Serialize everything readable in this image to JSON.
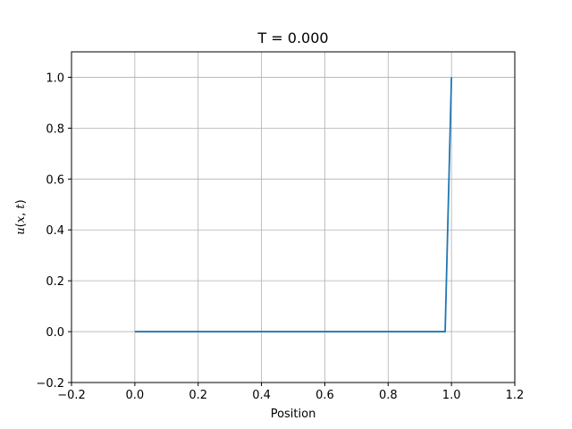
{
  "chart_data": {
    "type": "line",
    "title": "T = 0.000",
    "xlabel": "Position",
    "ylabel": "u(x, t)",
    "xlim": [
      -0.2,
      1.2
    ],
    "ylim": [
      -0.2,
      1.1
    ],
    "xticks": [
      -0.2,
      0.0,
      0.2,
      0.4,
      0.6,
      0.8,
      1.0,
      1.2
    ],
    "yticks": [
      -0.2,
      0.0,
      0.2,
      0.4,
      0.6,
      0.8,
      1.0
    ],
    "xtick_labels": [
      "−0.2",
      "0.0",
      "0.2",
      "0.4",
      "0.6",
      "0.8",
      "1.0",
      "1.2"
    ],
    "ytick_labels": [
      "−0.2",
      "0.0",
      "0.2",
      "0.4",
      "0.6",
      "0.8",
      "1.0"
    ],
    "grid": true,
    "series": [
      {
        "color": "#1f77b4",
        "x": [
          0.0,
          0.98,
          1.0
        ],
        "y": [
          0.0,
          0.0,
          1.0
        ]
      }
    ]
  }
}
